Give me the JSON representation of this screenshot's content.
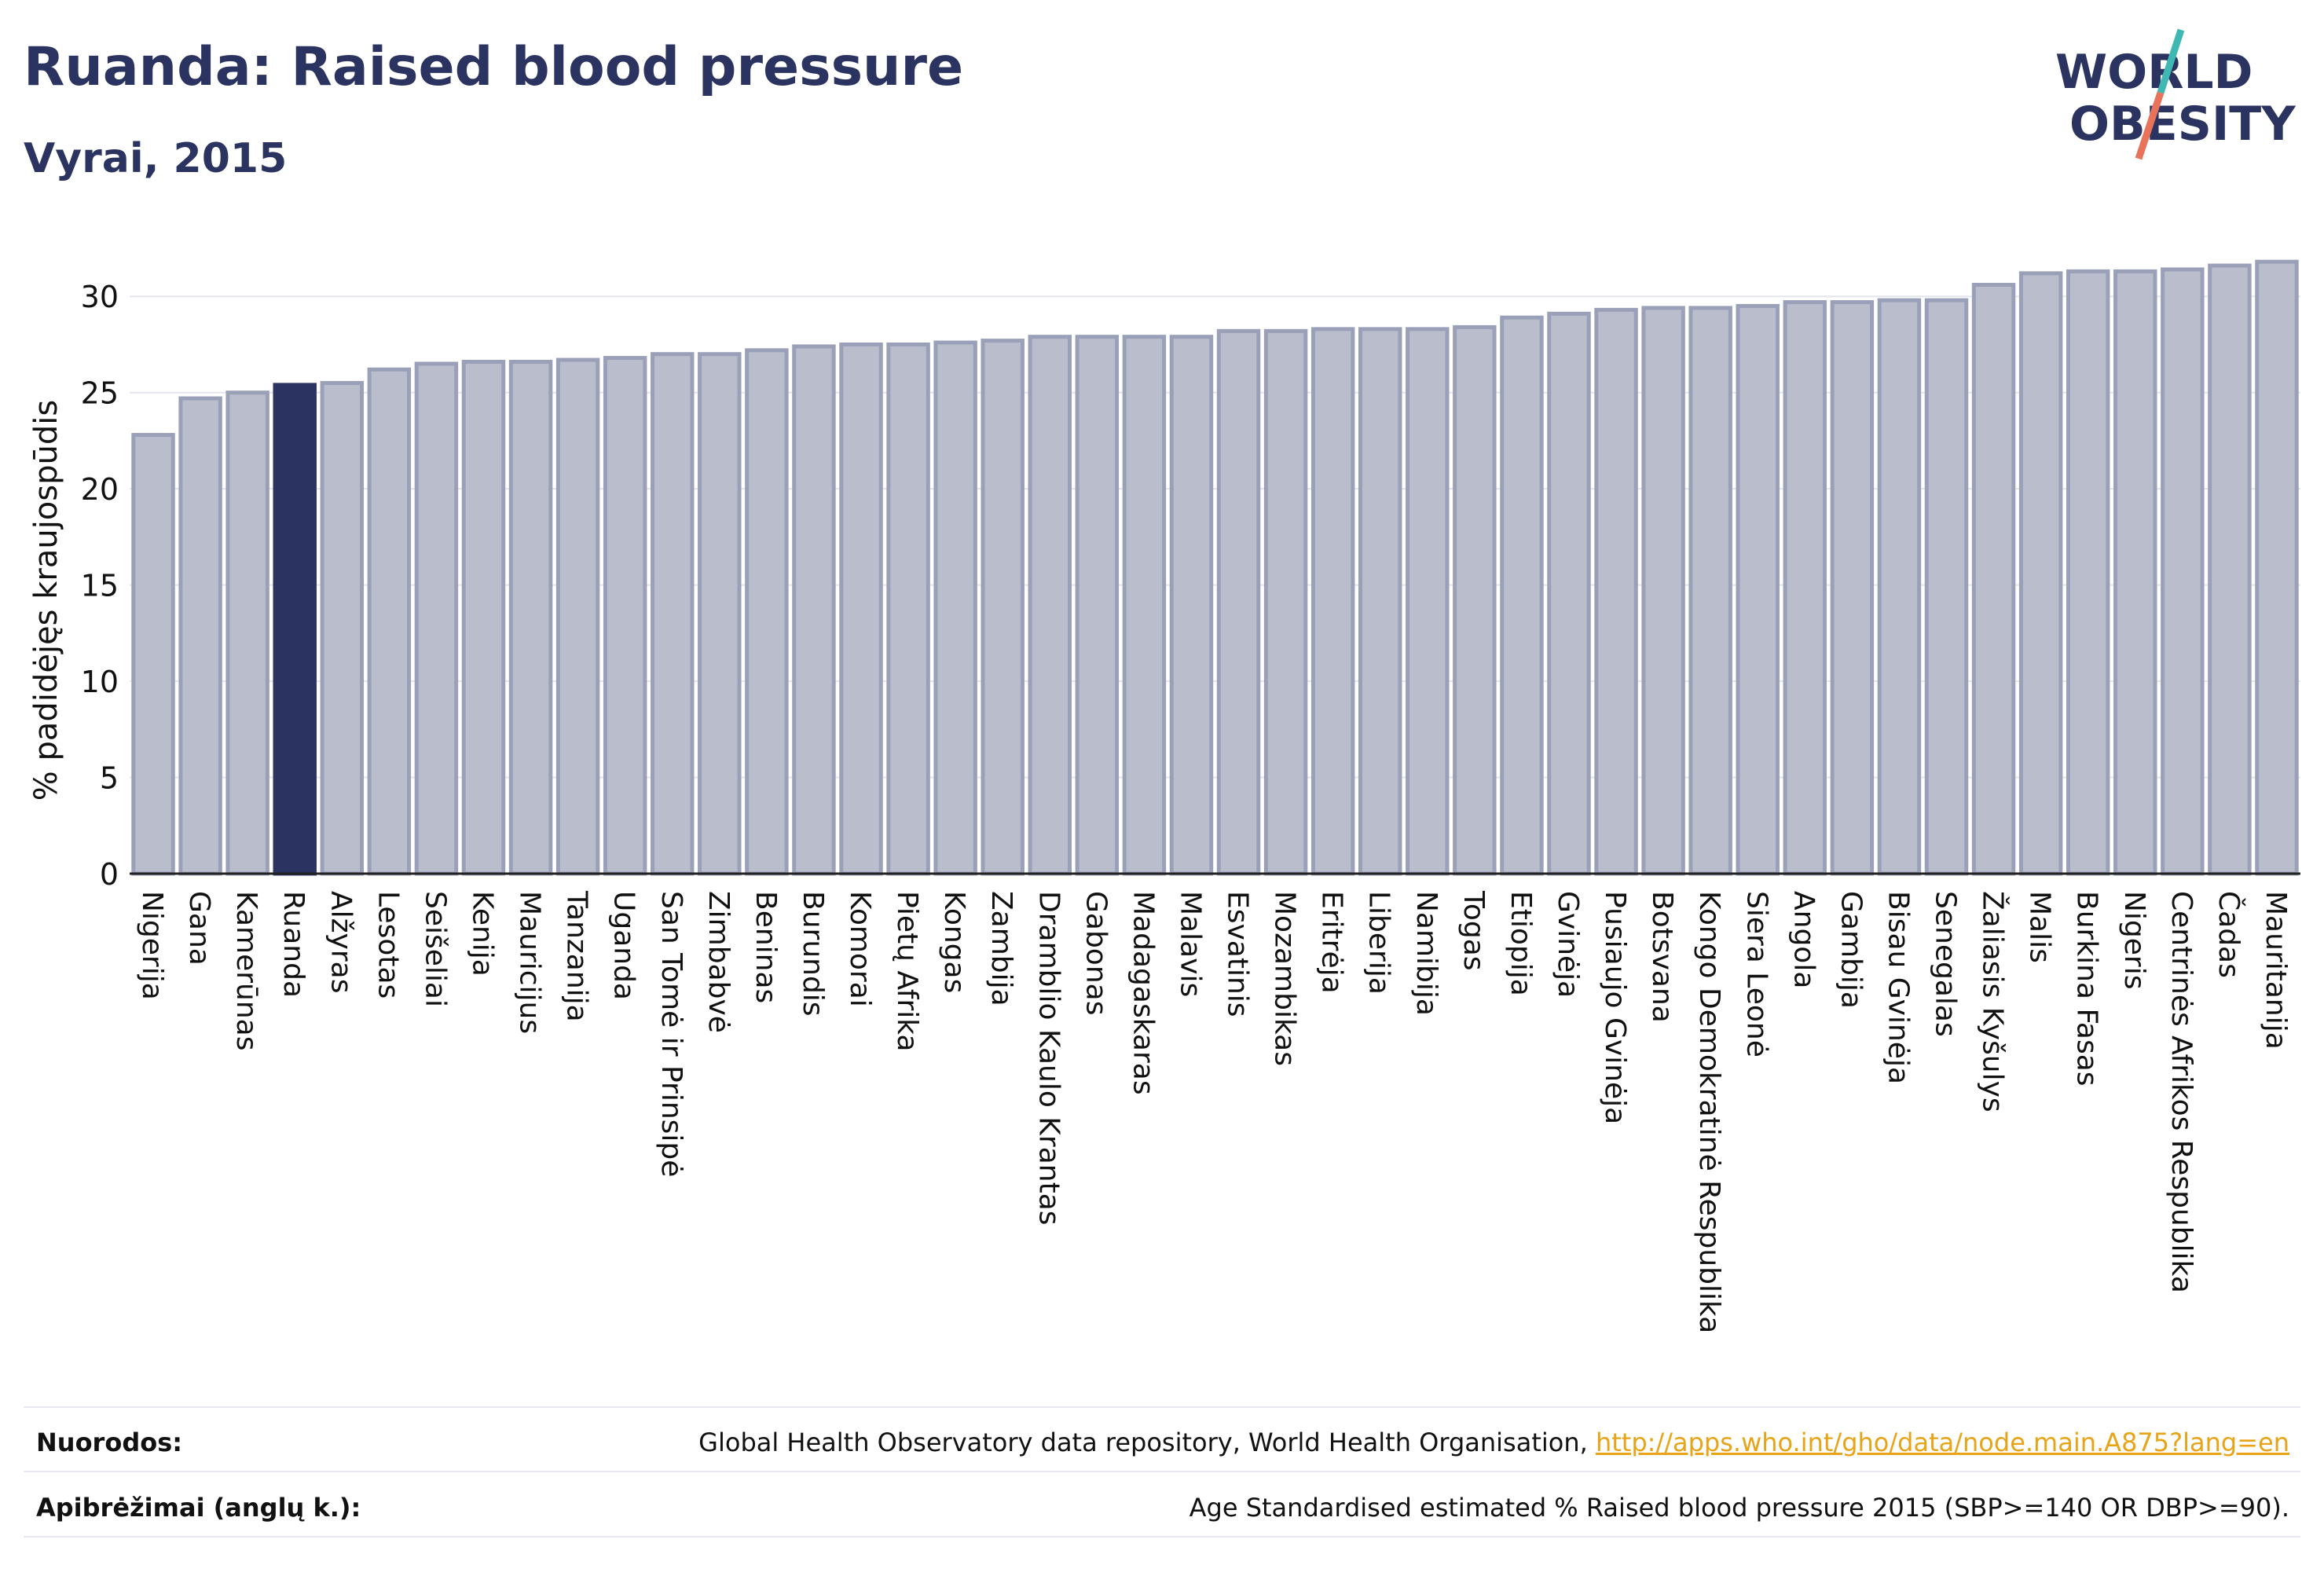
{
  "header": {
    "title": "Ruanda: Raised blood pressure",
    "subtitle": "Vyrai, 2015",
    "logo": {
      "line1": "WORLD",
      "line2": "OBESITY",
      "accent_color": "#e8735a",
      "teal_color": "#3fb7b3",
      "text_color": "#2b3461"
    }
  },
  "colors": {
    "bar": "#b9bdcc",
    "bar_edge": "#9aa0b8",
    "highlight": "#2b3461",
    "grid": "#e3e5ec",
    "axis": "#222222"
  },
  "chart_data": {
    "type": "bar",
    "ylabel": "% padidėjęs kraujospūdis",
    "ylim": [
      0,
      32.5
    ],
    "yticks": [
      0,
      5,
      10,
      15,
      20,
      25,
      30
    ],
    "grid": true,
    "highlight": "Ruanda",
    "categories": [
      "Nigerija",
      "Gana",
      "Kamerūnas",
      "Ruanda",
      "Alžyras",
      "Lesotas",
      "Seišeliai",
      "Kenija",
      "Mauricijus",
      "Tanzanija",
      "Uganda",
      "San Tomė ir Prinsipė",
      "Zimbabvė",
      "Beninas",
      "Burundis",
      "Komorai",
      "Pietų Afrika",
      "Kongas",
      "Zambija",
      "Dramblio Kaulo Krantas",
      "Gabonas",
      "Madagaskaras",
      "Malavis",
      "Esvatinis",
      "Mozambikas",
      "Eritrėja",
      "Liberija",
      "Namibija",
      "Togas",
      "Etiopija",
      "Gvinėja",
      "Pusiaujo Gvinėja",
      "Botsvana",
      "Kongo Demokratinė Respublika",
      "Siera Leonė",
      "Angola",
      "Gambija",
      "Bisau Gvinėja",
      "Senegalas",
      "Žaliasis Kyšulys",
      "Malis",
      "Burkina Fasas",
      "Nigeris",
      "Centrinės Afrikos Respublika",
      "Čadas",
      "Mauritanija"
    ],
    "values": [
      22.8,
      24.7,
      25.0,
      25.4,
      25.5,
      26.2,
      26.5,
      26.6,
      26.6,
      26.7,
      26.8,
      27.0,
      27.0,
      27.2,
      27.4,
      27.5,
      27.5,
      27.6,
      27.7,
      27.9,
      27.9,
      27.9,
      27.9,
      28.2,
      28.2,
      28.3,
      28.3,
      28.3,
      28.4,
      28.9,
      29.1,
      29.3,
      29.4,
      29.4,
      29.5,
      29.7,
      29.7,
      29.8,
      29.8,
      30.6,
      31.2,
      31.3,
      31.3,
      31.4,
      31.6,
      31.8
    ]
  },
  "footer": {
    "sources_label": "Nuorodos:",
    "sources_text": "Global Health Observatory data repository, World Health Organisation, ",
    "sources_link": "http://apps.who.int/gho/data/node.main.A875?lang=en",
    "definitions_label": "Apibrėžimai (anglų k.):",
    "definitions_text": "Age Standardised estimated % Raised blood pressure 2015 (SBP>=140 OR DBP>=90)."
  }
}
